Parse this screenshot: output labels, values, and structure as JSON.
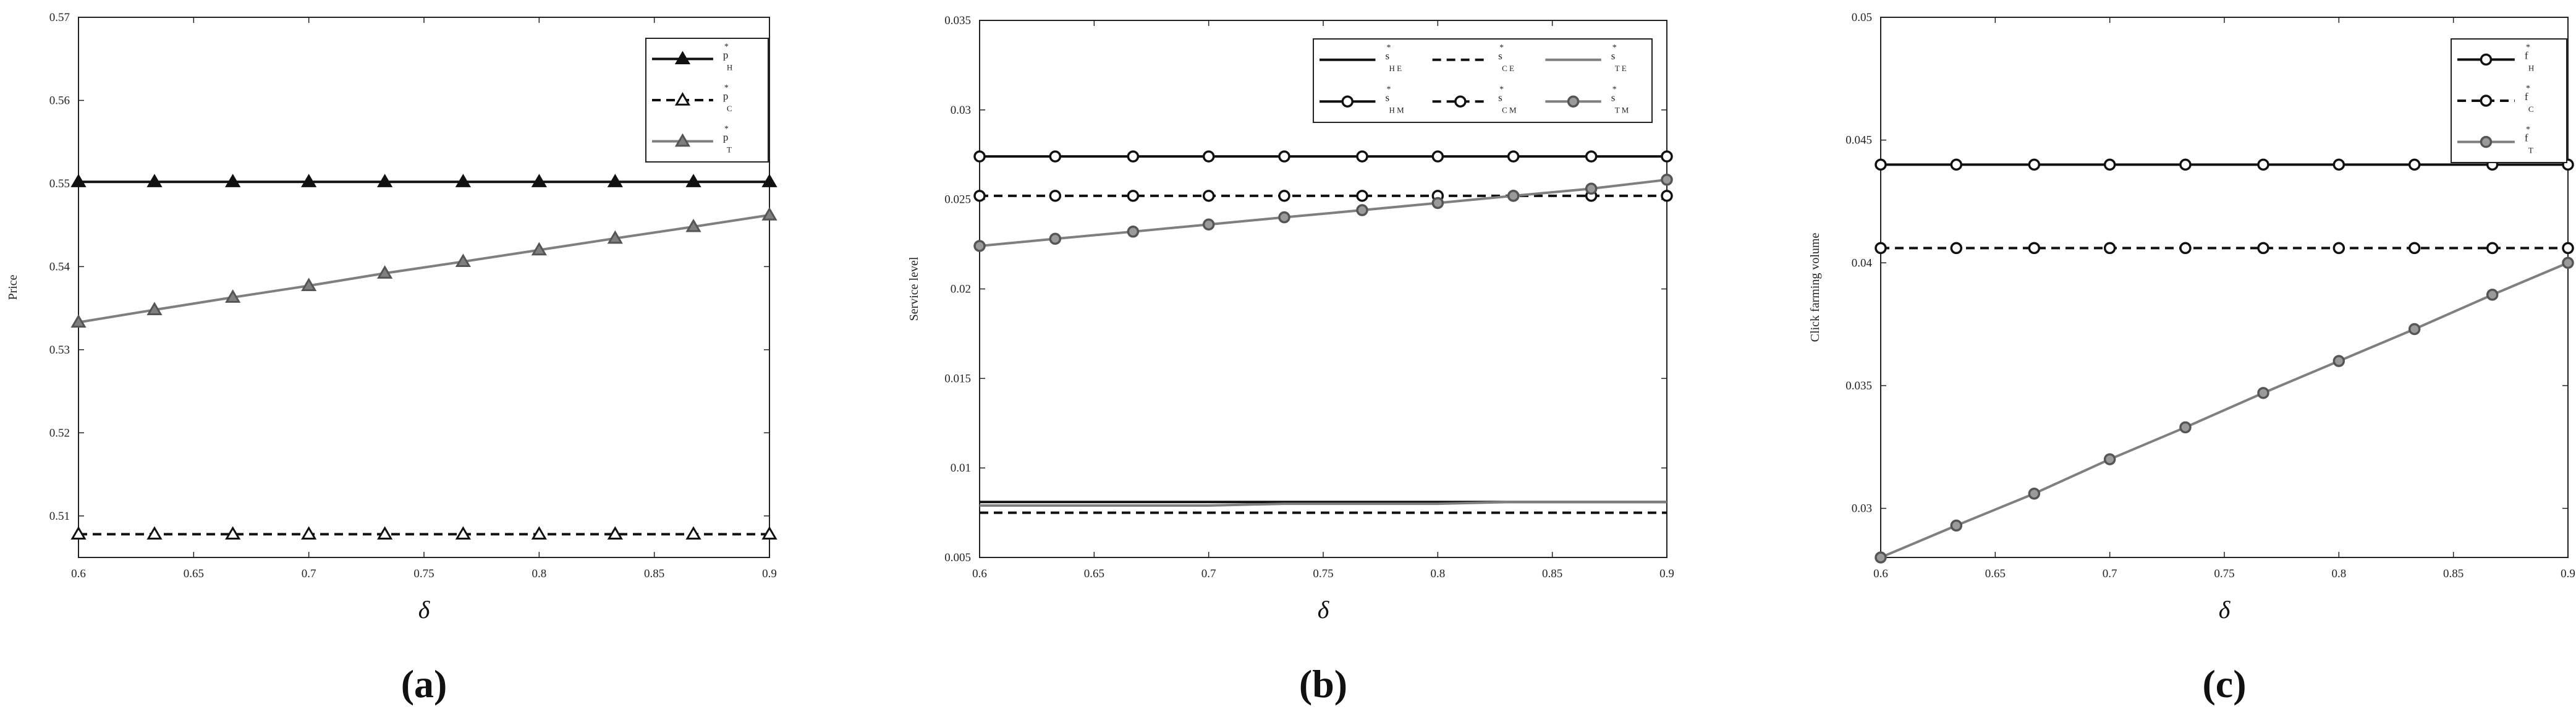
{
  "chart_data": [
    {
      "type": "line",
      "caption": "(a)",
      "xlabel": "δ",
      "ylabel": "Price",
      "xlim": [
        0.6,
        0.9
      ],
      "ylim": [
        0.505,
        0.57
      ],
      "xticks": [
        "0.6",
        "0.65",
        "0.7",
        "0.75",
        "0.8",
        "0.85",
        "0.9"
      ],
      "yticks": [
        "0.51",
        "0.52",
        "0.53",
        "0.54",
        "0.55",
        "0.56",
        "0.57"
      ],
      "x": [
        0.6,
        0.633,
        0.667,
        0.7,
        0.733,
        0.767,
        0.8,
        0.833,
        0.867,
        0.9
      ],
      "legend_position": "top-right",
      "series": [
        {
          "name": "p",
          "sub": "H",
          "color": "#111111",
          "dash": "solid",
          "marker": "triangle",
          "fill": "none",
          "values": [
            0.5502,
            0.5502,
            0.5502,
            0.5502,
            0.5502,
            0.5502,
            0.5502,
            0.5502,
            0.5502,
            0.5502
          ]
        },
        {
          "name": "p",
          "sub": "C",
          "color": "#111111",
          "dash": "dashed",
          "marker": "triangle",
          "fill": "open",
          "values": [
            0.5078,
            0.5078,
            0.5078,
            0.5078,
            0.5078,
            0.5078,
            0.5078,
            0.5078,
            0.5078,
            0.5078
          ]
        },
        {
          "name": "p",
          "sub": "T",
          "color": "#7f7f7f",
          "dash": "solid",
          "marker": "triangle",
          "fill": "filled",
          "values": [
            0.5333,
            0.5348,
            0.5363,
            0.5377,
            0.5392,
            0.5406,
            0.542,
            0.5434,
            0.5448,
            0.5462
          ]
        }
      ]
    },
    {
      "type": "line",
      "caption": "(b)",
      "xlabel": "δ",
      "ylabel": "Service level",
      "xlim": [
        0.6,
        0.9
      ],
      "ylim": [
        0.005,
        0.035
      ],
      "xticks": [
        "0.6",
        "0.65",
        "0.7",
        "0.75",
        "0.8",
        "0.85",
        "0.9"
      ],
      "yticks": [
        "0.005",
        "0.01",
        "0.015",
        "0.02",
        "0.025",
        "0.03",
        "0.035"
      ],
      "x": [
        0.6,
        0.633,
        0.667,
        0.7,
        0.733,
        0.767,
        0.8,
        0.833,
        0.867,
        0.9
      ],
      "legend_position": "top-right",
      "series": [
        {
          "name": "s",
          "sub": "H E",
          "color": "#111111",
          "dash": "solid",
          "marker": "none",
          "fill": "none",
          "values": [
            0.0081,
            0.0081,
            0.0081,
            0.0081,
            0.0081,
            0.0081,
            0.0081,
            0.0081,
            0.0081,
            0.0081
          ]
        },
        {
          "name": "s",
          "sub": "C E",
          "color": "#111111",
          "dash": "dashed",
          "marker": "none",
          "fill": "none",
          "values": [
            0.0075,
            0.0075,
            0.0075,
            0.0075,
            0.0075,
            0.0075,
            0.0075,
            0.0075,
            0.0075,
            0.0075
          ]
        },
        {
          "name": "s",
          "sub": "T E",
          "color": "#7f7f7f",
          "dash": "solid",
          "marker": "none",
          "fill": "none",
          "values": [
            0.0079,
            0.0079,
            0.0079,
            0.0079,
            0.008,
            0.008,
            0.008,
            0.0081,
            0.0081,
            0.0081
          ]
        },
        {
          "name": "s",
          "sub": "H M",
          "color": "#111111",
          "dash": "solid",
          "marker": "circle",
          "fill": "open",
          "values": [
            0.0274,
            0.0274,
            0.0274,
            0.0274,
            0.0274,
            0.0274,
            0.0274,
            0.0274,
            0.0274,
            0.0274
          ]
        },
        {
          "name": "s",
          "sub": "C M",
          "color": "#111111",
          "dash": "dashed",
          "marker": "circle",
          "fill": "open",
          "values": [
            0.0252,
            0.0252,
            0.0252,
            0.0252,
            0.0252,
            0.0252,
            0.0252,
            0.0252,
            0.0252,
            0.0252
          ]
        },
        {
          "name": "s",
          "sub": "T M",
          "color": "#7f7f7f",
          "dash": "solid",
          "marker": "circle",
          "fill": "filled",
          "values": [
            0.0224,
            0.0228,
            0.0232,
            0.0236,
            0.024,
            0.0244,
            0.0248,
            0.0252,
            0.0256,
            0.0261
          ]
        }
      ]
    },
    {
      "type": "line",
      "caption": "(c)",
      "xlabel": "δ",
      "ylabel": "Click farming volume",
      "xlim": [
        0.6,
        0.9
      ],
      "ylim": [
        0.028,
        0.05
      ],
      "xticks": [
        "0.6",
        "0.65",
        "0.7",
        "0.75",
        "0.8",
        "0.85",
        "0.9"
      ],
      "yticks": [
        "0.03",
        "0.035",
        "0.04",
        "0.045",
        "0.05"
      ],
      "x": [
        0.6,
        0.633,
        0.667,
        0.7,
        0.733,
        0.767,
        0.8,
        0.833,
        0.867,
        0.9
      ],
      "legend_position": "top-right",
      "series": [
        {
          "name": "f",
          "sub": "H",
          "color": "#111111",
          "dash": "solid",
          "marker": "circle",
          "fill": "open",
          "values": [
            0.044,
            0.044,
            0.044,
            0.044,
            0.044,
            0.044,
            0.044,
            0.044,
            0.044,
            0.044
          ]
        },
        {
          "name": "f",
          "sub": "C",
          "color": "#111111",
          "dash": "dashed",
          "marker": "circle",
          "fill": "open",
          "values": [
            0.0406,
            0.0406,
            0.0406,
            0.0406,
            0.0406,
            0.0406,
            0.0406,
            0.0406,
            0.0406,
            0.0406
          ]
        },
        {
          "name": "f",
          "sub": "T",
          "color": "#7f7f7f",
          "dash": "solid",
          "marker": "circle",
          "fill": "filled",
          "values": [
            0.028,
            0.0293,
            0.0306,
            0.032,
            0.0333,
            0.0347,
            0.036,
            0.0373,
            0.0387,
            0.04
          ]
        }
      ]
    }
  ]
}
